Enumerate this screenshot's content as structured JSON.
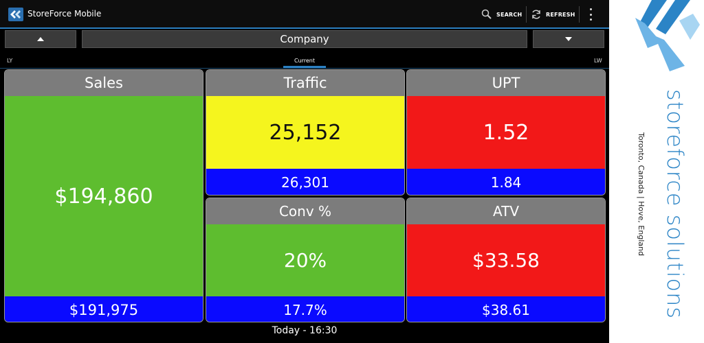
{
  "app": {
    "title": "StoreForce Mobile"
  },
  "actionbar": {
    "search_label": "SEARCH",
    "refresh_label": "REFRESH"
  },
  "nav": {
    "location": "Company"
  },
  "periods": {
    "left": "LY",
    "current": "Current",
    "right": "LW"
  },
  "tiles": {
    "sales": {
      "label": "Sales",
      "value": "$194,860",
      "compare": "$191,975",
      "status_color": "#5ebd2f"
    },
    "traffic": {
      "label": "Traffic",
      "value": "25,152",
      "compare": "26,301",
      "status_color": "#f5f51e"
    },
    "upt": {
      "label": "UPT",
      "value": "1.52",
      "compare": "1.84",
      "status_color": "#f21818"
    },
    "conv": {
      "label": "Conv %",
      "value": "20%",
      "compare": "17.7%",
      "status_color": "#5ebd2f"
    },
    "atv": {
      "label": "ATV",
      "value": "$33.58",
      "compare": "$38.61",
      "status_color": "#f21818"
    }
  },
  "footer": {
    "timestamp": "Today - 16:30"
  },
  "brand": {
    "name": "storeforce solutions",
    "locations": "Toronto, Canada  |  Hove, England"
  },
  "colors": {
    "accent": "#2b7fc0",
    "compare_bar": "#0a0aff",
    "header_gray": "#7c7c7c"
  },
  "icons": [
    "storeforce-logo-icon",
    "search-icon",
    "refresh-icon",
    "overflow-menu-icon",
    "chevron-up-icon",
    "chevron-down-icon"
  ]
}
